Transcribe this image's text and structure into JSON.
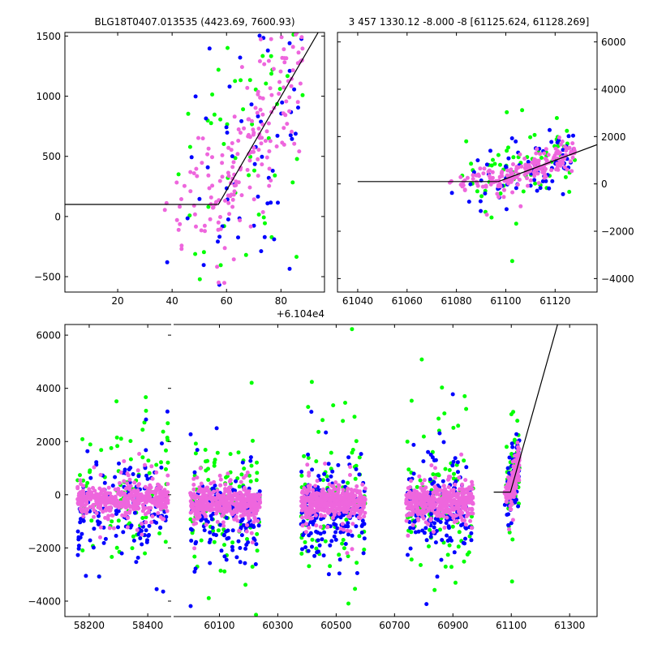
{
  "chart_data": {
    "type": "scatter",
    "colors": {
      "blue": "#0000ff",
      "green": "#00ff00",
      "pink": "#ee66dd",
      "model": "#000000"
    },
    "series_names": [
      "blue",
      "green",
      "pink"
    ],
    "panels": [
      {
        "id": "top-left",
        "title": "BLG18T0407.013535 (4423.69, 7600.93)",
        "xlim": [
          0.6,
          96
        ],
        "ylim": [
          -628,
          1530
        ],
        "x_offset": 61040,
        "offset_text": "+6.104e4",
        "xticks": [
          20,
          40,
          60,
          80
        ],
        "yticks": [
          -500,
          0,
          500,
          1000,
          1500
        ],
        "ytick_side": "left"
      },
      {
        "id": "top-right",
        "title": "3 457 1330.12 -8.000 -8 [61125.624, 61128.269]",
        "xlim": [
          61031.8,
          61137
        ],
        "ylim": [
          -4570,
          6400
        ],
        "x_offset": 0,
        "xticks": [
          61040,
          61060,
          61080,
          61100,
          61120
        ],
        "yticks": [
          -4000,
          -2000,
          0,
          2000,
          4000,
          6000
        ],
        "ytick_side": "right"
      },
      {
        "id": "bottom-left",
        "xlim": [
          58117,
          58480
        ],
        "ylim": [
          -4580,
          6400
        ],
        "x_offset": 0,
        "xticks": [
          58200,
          58400
        ],
        "yticks": [
          -4000,
          -2000,
          0,
          2000,
          4000,
          6000
        ],
        "ytick_side": "left"
      },
      {
        "id": "bottom-right",
        "xlim": [
          59943,
          61394
        ],
        "ylim": [
          -4580,
          6400
        ],
        "x_offset": 0,
        "xticks": [
          60100,
          60300,
          60500,
          60700,
          60900,
          61100,
          61300
        ],
        "yticks": [],
        "ytick_side": "none"
      }
    ],
    "model": {
      "baseline": 100,
      "t_break": 61097,
      "slope_per_day": 39,
      "t_start": 61040
    },
    "seasons": [
      {
        "x": [
          58160,
          58470
        ],
        "y_center": -200,
        "counts": {
          "green": 100,
          "blue": 150,
          "pink": 420
        },
        "spread": {
          "green": 1500,
          "blue": 1000,
          "pink": 260
        }
      },
      {
        "x": [
          60000,
          60240
        ],
        "y_center": -300,
        "counts": {
          "green": 110,
          "blue": 170,
          "pink": 420
        },
        "spread": {
          "green": 1500,
          "blue": 900,
          "pink": 260
        }
      },
      {
        "x": [
          60380,
          60600
        ],
        "y_center": -300,
        "counts": {
          "green": 110,
          "blue": 170,
          "pink": 420
        },
        "spread": {
          "green": 1500,
          "blue": 900,
          "pink": 260
        }
      },
      {
        "x": [
          60740,
          60970
        ],
        "y_center": -250,
        "counts": {
          "green": 110,
          "blue": 170,
          "pink": 420
        },
        "spread": {
          "green": 1400,
          "blue": 900,
          "pink": 260
        }
      }
    ],
    "event": {
      "x": [
        61075,
        61128
      ],
      "counts": {
        "green": 70,
        "blue": 70,
        "pink": 190
      },
      "spread": {
        "green": 650,
        "blue": 550,
        "pink": 260
      }
    }
  }
}
